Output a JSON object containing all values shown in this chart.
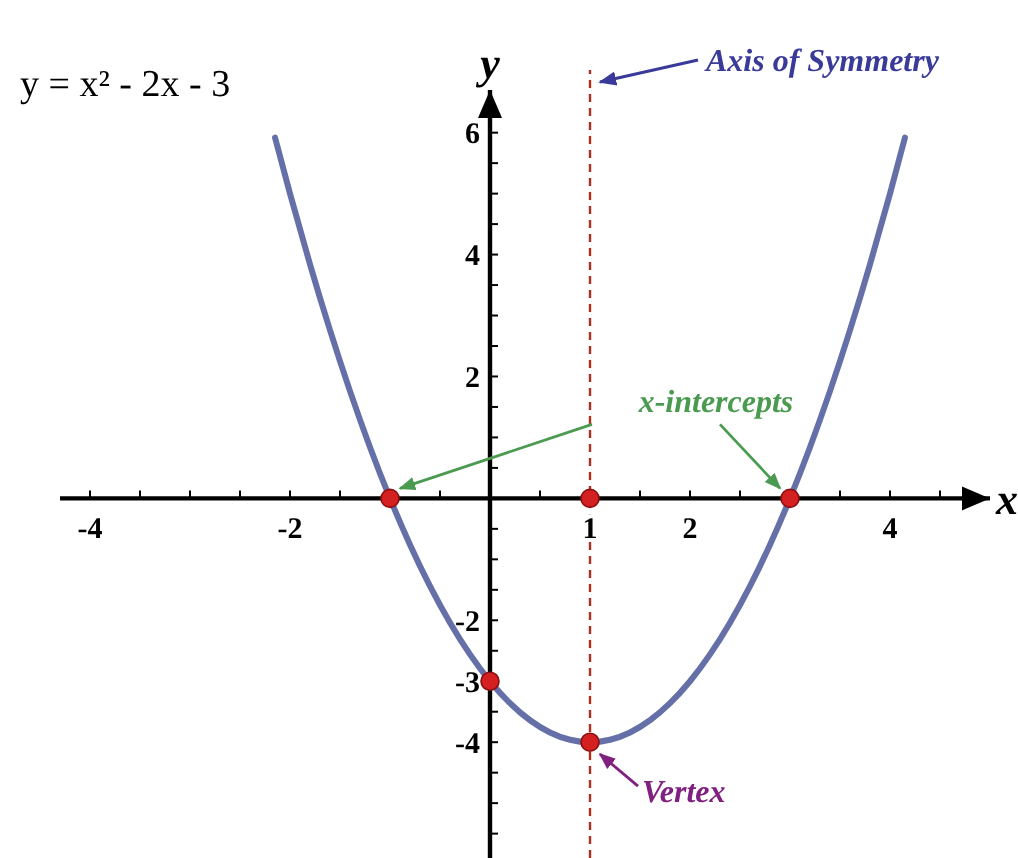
{
  "chart_data": {
    "type": "line",
    "title": "y = x² - 2x - 3",
    "xlabel": "x",
    "ylabel": "y",
    "xlim": [
      -4.3,
      5.0
    ],
    "ylim": [
      -5.9,
      6.7
    ],
    "xticks": [
      {
        "value": -4,
        "label": "-4"
      },
      {
        "value": -3.5,
        "label": null
      },
      {
        "value": -3,
        "label": null
      },
      {
        "value": -2.5,
        "label": null
      },
      {
        "value": -2,
        "label": "-2"
      },
      {
        "value": -1.5,
        "label": null
      },
      {
        "value": -1,
        "label": null
      },
      {
        "value": -0.5,
        "label": null
      },
      {
        "value": 0.5,
        "label": null
      },
      {
        "value": 1,
        "label": "1"
      },
      {
        "value": 1.5,
        "label": null
      },
      {
        "value": 2,
        "label": "2"
      },
      {
        "value": 2.5,
        "label": null
      },
      {
        "value": 3,
        "label": null
      },
      {
        "value": 3.5,
        "label": null
      },
      {
        "value": 4,
        "label": "4"
      },
      {
        "value": 4.5,
        "label": null
      }
    ],
    "yticks": [
      {
        "value": -5.5,
        "label": null
      },
      {
        "value": -5,
        "label": null
      },
      {
        "value": -4.5,
        "label": null
      },
      {
        "value": -4,
        "label": "-4"
      },
      {
        "value": -3.5,
        "label": null
      },
      {
        "value": -3,
        "label": "-3"
      },
      {
        "value": -2.5,
        "label": null
      },
      {
        "value": -2,
        "label": "-2"
      },
      {
        "value": -1.5,
        "label": null
      },
      {
        "value": -1,
        "label": null
      },
      {
        "value": -0.5,
        "label": null
      },
      {
        "value": 0.5,
        "label": null
      },
      {
        "value": 1,
        "label": null
      },
      {
        "value": 1.5,
        "label": null
      },
      {
        "value": 2,
        "label": "2"
      },
      {
        "value": 2.5,
        "label": null
      },
      {
        "value": 3,
        "label": null
      },
      {
        "value": 3.5,
        "label": null
      },
      {
        "value": 4,
        "label": "4"
      },
      {
        "value": 4.5,
        "label": null
      },
      {
        "value": 5,
        "label": null
      },
      {
        "value": 5.5,
        "label": null
      },
      {
        "value": 6,
        "label": "6"
      }
    ],
    "grid": false,
    "line_style": "solid",
    "series": [
      {
        "color": "#6670a8",
        "marker": "none",
        "x": [
          -2.15,
          -2,
          -1.8,
          -1.6,
          -1.4,
          -1.2,
          -1,
          -0.8,
          -0.6,
          -0.4,
          -0.2,
          0,
          0.2,
          0.4,
          0.6,
          0.8,
          1,
          1.2,
          1.4,
          1.6,
          1.8,
          2,
          2.2,
          2.4,
          2.6,
          2.8,
          3,
          3.2,
          3.4,
          3.6,
          3.8,
          4,
          4.15
        ],
        "values": [
          5.92,
          5,
          3.84,
          2.76,
          1.76,
          0.84,
          0,
          -0.76,
          -1.44,
          -2.04,
          -2.56,
          -3,
          -3.36,
          -3.64,
          -3.84,
          -3.96,
          -4,
          -3.96,
          -3.84,
          -3.64,
          -3.36,
          -3,
          -2.56,
          -2.04,
          -1.44,
          -0.76,
          0,
          0.84,
          1.76,
          2.76,
          3.84,
          5,
          5.92
        ]
      },
      {
        "type": "scatter",
        "color": "#d42020",
        "marker": "circle",
        "x": [
          -1,
          1,
          3,
          0,
          1
        ],
        "values": [
          0,
          0,
          0,
          -3,
          -4
        ]
      }
    ],
    "ref_lines": [
      {
        "axis": "x",
        "value": 1,
        "label": "Axis of Symmetry",
        "color": "#b03020",
        "line_style": "dashed"
      }
    ],
    "annotations": [
      {
        "text": "x-intercepts",
        "x": 3,
        "y": 0
      },
      {
        "text": "Vertex",
        "x": 1,
        "y": -4
      }
    ]
  }
}
